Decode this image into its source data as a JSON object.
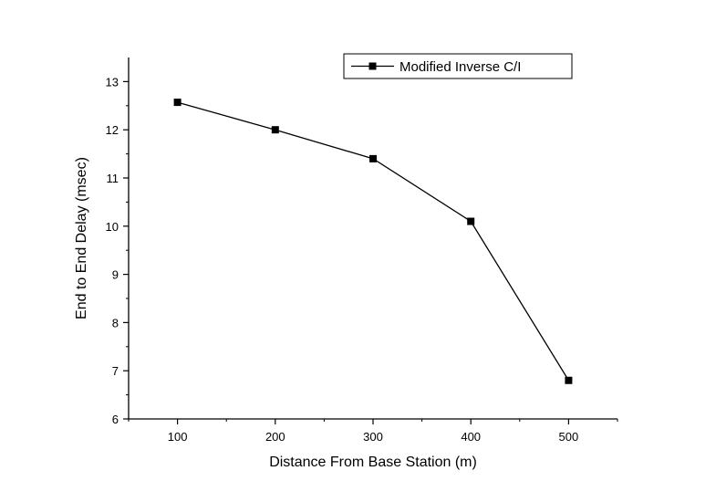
{
  "chart_data": {
    "type": "line",
    "title": "",
    "xlabel": "Distance From Base Station (m)",
    "ylabel": "End to End Delay (msec)",
    "x": [
      100,
      200,
      300,
      400,
      500
    ],
    "series": [
      {
        "name": "Modified Inverse C/I",
        "values": [
          12.57,
          12.0,
          11.4,
          10.1,
          6.8
        ],
        "color": "#000000",
        "marker": "square"
      }
    ],
    "xlim": [
      50,
      550
    ],
    "ylim": [
      6,
      13.5
    ],
    "xticks": [
      100,
      200,
      300,
      400,
      500
    ],
    "yticks": [
      6,
      7,
      8,
      9,
      10,
      11,
      12,
      13
    ],
    "grid": false,
    "legend_position": "top-right"
  }
}
